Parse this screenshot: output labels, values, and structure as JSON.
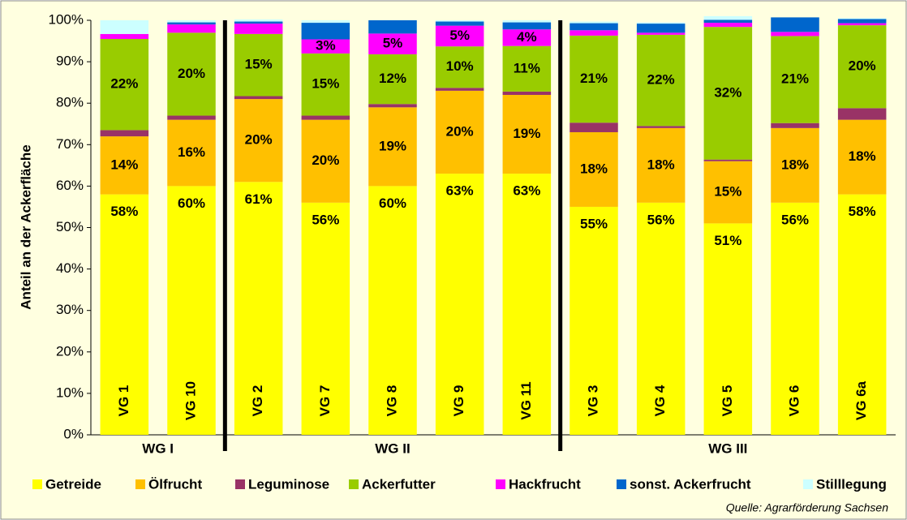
{
  "chart_data": {
    "type": "stacked_bar",
    "y_label": "Anteil an der Ackerfläche",
    "source": "Quelle: Agrarförderung Sachsen",
    "categories": [
      "VG 1",
      "VG 10",
      "VG 2",
      "VG 7",
      "VG 8",
      "VG 9",
      "VG 11",
      "VG 3",
      "VG 4",
      "VG 5",
      "VG 6",
      "VG 6a"
    ],
    "groups": [
      {
        "name": "WG I",
        "members": [
          0,
          1
        ]
      },
      {
        "name": "WG II",
        "members": [
          2,
          3,
          4,
          5,
          6
        ]
      },
      {
        "name": "WG III",
        "members": [
          7,
          8,
          9,
          10,
          11
        ]
      }
    ],
    "ylim": [
      0,
      100
    ],
    "yticks": [
      {
        "value": 0,
        "label": "0%"
      },
      {
        "value": 10,
        "label": "10%"
      },
      {
        "value": 20,
        "label": "20%"
      },
      {
        "value": 30,
        "label": "30%"
      },
      {
        "value": 40,
        "label": "40%"
      },
      {
        "value": 50,
        "label": "50%"
      },
      {
        "value": 60,
        "label": "60%"
      },
      {
        "value": 70,
        "label": "70%"
      },
      {
        "value": 80,
        "label": "80%"
      },
      {
        "value": 90,
        "label": "90%"
      },
      {
        "value": 100,
        "label": "100%"
      }
    ],
    "grid": false,
    "legend": "bottom",
    "series": [
      {
        "name": "Getreide",
        "color": "#ffff00",
        "values": [
          58,
          60,
          61,
          56,
          60,
          63,
          63,
          55,
          56,
          51,
          56,
          58
        ],
        "value_labels": [
          "58%",
          "60%",
          "61%",
          "56%",
          "60%",
          "63%",
          "63%",
          "55%",
          "56%",
          "51%",
          "56%",
          "58%"
        ]
      },
      {
        "name": "Ölfrucht",
        "color": "#ffc000",
        "values": [
          14,
          16,
          20,
          20,
          19,
          20,
          19,
          18,
          18,
          15,
          18,
          18
        ],
        "value_labels": [
          "14%",
          "16%",
          "20%",
          "20%",
          "19%",
          "20%",
          "19%",
          "18%",
          "18%",
          "15%",
          "18%",
          "18%"
        ]
      },
      {
        "name": "Leguminose",
        "color": "#993366",
        "values": [
          1.5,
          1,
          0.7,
          1,
          0.8,
          0.7,
          0.8,
          2.3,
          0.5,
          0.4,
          1.2,
          2.8
        ]
      },
      {
        "name": "Ackerfutter",
        "color": "#99cc00",
        "values": [
          22,
          20,
          15,
          15,
          12,
          10,
          11,
          21,
          22,
          32,
          21,
          20
        ],
        "value_labels": [
          "22%",
          "20%",
          "15%",
          "15%",
          "12%",
          "10%",
          "11%",
          "21%",
          "22%",
          "32%",
          "21%",
          "20%"
        ]
      },
      {
        "name": "Hackfrucht",
        "color": "#ff00ff",
        "values": [
          1.2,
          2,
          2.5,
          3.4,
          5,
          5,
          4,
          1.3,
          0.5,
          1,
          1,
          0.5
        ],
        "value_labels": [
          null,
          null,
          null,
          "3%",
          "5%",
          "5%",
          "4%",
          null,
          null,
          null,
          null,
          null
        ]
      },
      {
        "name": "sonst. Ackerfrucht",
        "color": "#0066cc",
        "values": [
          0,
          0.5,
          0.5,
          4,
          3.2,
          1,
          1.7,
          1.7,
          2.2,
          0.7,
          3.5,
          1
        ]
      },
      {
        "name": "Stilllegung",
        "color": "#ccffff",
        "values": [
          3.3,
          0.5,
          0.5,
          0.6,
          0,
          0.3,
          0.5,
          0.4,
          0.3,
          0.9,
          0,
          0.2
        ]
      }
    ]
  }
}
